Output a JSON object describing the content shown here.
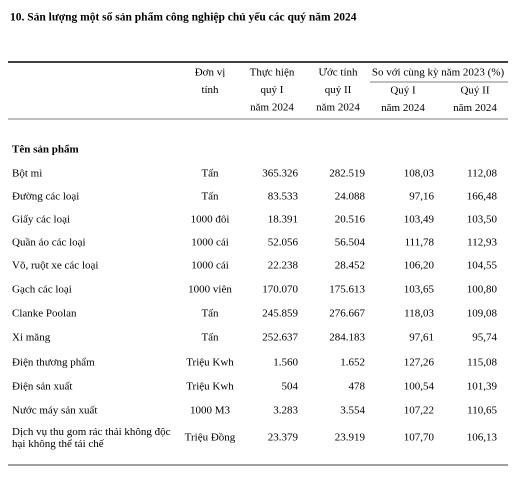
{
  "title": "10. Sản lượng một số sản phẩm công nghiệp chủ yếu các quý năm 2024",
  "header": {
    "unit": [
      "Đơn vị",
      "tính"
    ],
    "q1_actual": [
      "Thực hiện",
      "quý I",
      "năm 2024"
    ],
    "q2_estimate": [
      "Ước tính",
      "quý II",
      "năm 2024"
    ],
    "compare": "So với cùng kỳ năm 2023 (%)",
    "compare_q1": [
      "Quý I",
      "năm 2024"
    ],
    "compare_q2": [
      "Quý II",
      "năm 2024"
    ]
  },
  "section": "Tên sản phẩm",
  "table": {
    "rows": [
      [
        "Bột mì",
        "Tấn",
        "365.326",
        "282.519",
        "108,03",
        "112,08"
      ],
      [
        "Đường các loại",
        "Tấn",
        "83.533",
        "24.088",
        "97,16",
        "166,48"
      ],
      [
        "Giấy các loại",
        "1000 đôi",
        "18.391",
        "20.516",
        "103,49",
        "103,50"
      ],
      [
        "Quần áo các loại",
        "1000 cái",
        "52.056",
        "56.504",
        "111,78",
        "112,93"
      ],
      [
        "Võ, ruột xe các loại",
        "1000 cái",
        "22.238",
        "28.452",
        "106,20",
        "104,55"
      ],
      [
        "Gạch các loại",
        "1000 viên",
        "170.070",
        "175.613",
        "103,65",
        "100,80"
      ],
      [
        "Clanke Poolan",
        "Tấn",
        "245.859",
        "276.667",
        "118,03",
        "109,08"
      ],
      [
        "Xi măng",
        "Tấn",
        "252.637",
        "284.183",
        "97,61",
        "95,74"
      ],
      [
        "Điện thương phẩm",
        "Triệu Kwh",
        "1.560",
        "1.652",
        "127,26",
        "115,08"
      ],
      [
        "Điện sản xuất",
        "Triệu Kwh",
        "504",
        "478",
        "100,54",
        "101,39"
      ],
      [
        "Nước máy sản xuất",
        "1000 M3",
        "3.283",
        "3.554",
        "107,22",
        "110,65"
      ],
      [
        "Dịch vụ thu gom rác thải không độc hại không thể tái chế",
        "Triệu Đồng",
        "23.379",
        "23.919",
        "107,70",
        "106,13"
      ]
    ]
  }
}
